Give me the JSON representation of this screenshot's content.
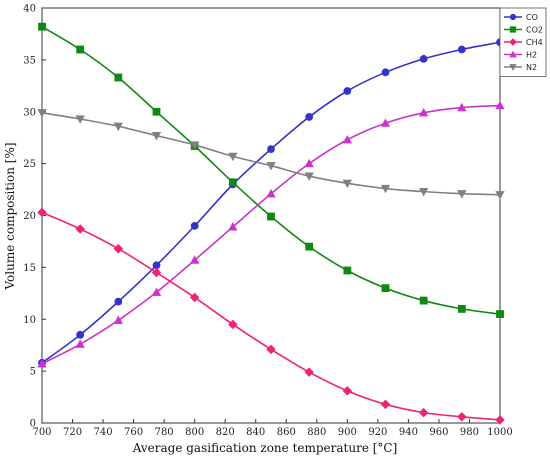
{
  "chart_data": {
    "type": "line",
    "xlabel": "Average gasification zone temperature  [°C]",
    "ylabel": "Volume composition [%]",
    "xlim": [
      700,
      1000
    ],
    "ylim": [
      0,
      40
    ],
    "x_ticks": [
      700,
      720,
      740,
      760,
      780,
      800,
      820,
      840,
      860,
      880,
      900,
      920,
      940,
      960,
      980,
      1000
    ],
    "y_ticks": [
      0,
      5,
      10,
      15,
      20,
      25,
      30,
      35,
      40
    ],
    "grid": false,
    "legend_position": "top-right",
    "x": [
      700,
      725,
      750,
      775,
      800,
      825,
      850,
      875,
      900,
      925,
      950,
      975,
      1000
    ],
    "series": [
      {
        "name": "CO",
        "color": "#3333cc",
        "marker": "circle",
        "values": [
          5.8,
          8.5,
          11.7,
          15.2,
          19.0,
          23.0,
          26.4,
          29.5,
          32.0,
          33.8,
          35.1,
          36.0,
          36.7
        ]
      },
      {
        "name": "CO2",
        "color": "#118811",
        "marker": "square",
        "values": [
          38.2,
          36.0,
          33.3,
          30.0,
          26.7,
          23.2,
          19.9,
          17.0,
          14.7,
          13.0,
          11.8,
          11.0,
          10.5
        ]
      },
      {
        "name": "CH4",
        "color": "#ee2277",
        "marker": "diamond",
        "values": [
          20.3,
          18.7,
          16.8,
          14.5,
          12.1,
          9.5,
          7.1,
          4.9,
          3.1,
          1.8,
          1.0,
          0.6,
          0.3
        ]
      },
      {
        "name": "H2",
        "color": "#cc33cc",
        "marker": "triangle-up",
        "values": [
          5.7,
          7.6,
          9.9,
          12.6,
          15.7,
          18.9,
          22.1,
          25.0,
          27.3,
          28.9,
          29.9,
          30.4,
          30.6
        ]
      },
      {
        "name": "N2",
        "color": "#808080",
        "marker": "triangle-down",
        "values": [
          29.9,
          29.3,
          28.6,
          27.7,
          26.8,
          25.7,
          24.8,
          23.8,
          23.1,
          22.6,
          22.3,
          22.1,
          22.0
        ]
      }
    ]
  }
}
